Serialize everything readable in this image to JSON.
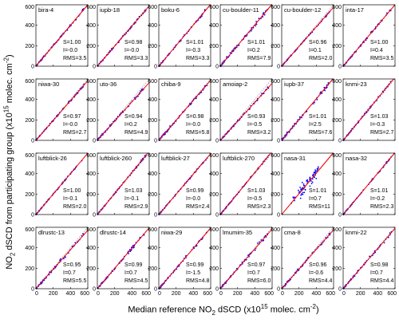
{
  "figure": {
    "ylabel_pre": "NO",
    "ylabel_sub": "2",
    "ylabel_mid": " dSCD from participating group (x10",
    "ylabel_sup1": "15",
    "ylabel_post": " molec. cm",
    "ylabel_sup2": "-2",
    "ylabel_end": ")",
    "xlabel_pre": "Median reference NO",
    "xlabel_sub": "2",
    "xlabel_mid": " dSCD (x10",
    "xlabel_sup1": "15",
    "xlabel_post": " molec. cm",
    "xlabel_sup2": "-2",
    "xlabel_end": ")",
    "colors": {
      "points": "#0000ff",
      "fit": "#ff0000",
      "one_to_one": "#999999"
    }
  },
  "chart_data": [
    {
      "type": "scatter",
      "title": "bira-4",
      "stats": {
        "S": "1.00",
        "I": "-0.0",
        "RMS": "3.5"
      },
      "xlim": [
        0,
        600
      ],
      "ylim": [
        0,
        600
      ],
      "yticks": [
        0,
        200,
        400,
        600
      ],
      "xticks": []
    },
    {
      "type": "scatter",
      "title": "iupb-18",
      "stats": {
        "S": "0.98",
        "I": "-0.0",
        "RMS": "3.3"
      },
      "xlim": [
        0,
        600
      ],
      "ylim": [
        0,
        600
      ],
      "yticks": [
        0,
        200,
        400,
        600
      ],
      "xticks": []
    },
    {
      "type": "scatter",
      "title": "boku-6",
      "stats": {
        "S": "1.01",
        "I": "-0.3",
        "RMS": "3.3"
      },
      "xlim": [
        0,
        600
      ],
      "ylim": [
        0,
        600
      ],
      "yticks": [
        0,
        200,
        400,
        600
      ],
      "xticks": []
    },
    {
      "type": "scatter",
      "title": "cu-boulder-11",
      "stats": {
        "S": "1.01",
        "I": "0.2",
        "RMS": "7.9"
      },
      "xlim": [
        0,
        600
      ],
      "ylim": [
        0,
        600
      ],
      "yticks": [
        0,
        200,
        400,
        600
      ],
      "xticks": []
    },
    {
      "type": "scatter",
      "title": "cu-boulder-12",
      "stats": {
        "S": "0.96",
        "I": "0.1",
        "RMS": "2.0"
      },
      "xlim": [
        0,
        600
      ],
      "ylim": [
        0,
        600
      ],
      "yticks": [
        0,
        200,
        400,
        600
      ],
      "xticks": []
    },
    {
      "type": "scatter",
      "title": "inta-17",
      "stats": {
        "S": "1.00",
        "I": "0.4",
        "RMS": "3.5"
      },
      "xlim": [
        0,
        600
      ],
      "ylim": [
        0,
        600
      ],
      "yticks": [
        0,
        200,
        400,
        600
      ],
      "xticks": []
    },
    {
      "type": "scatter",
      "title": "niwa-30",
      "stats": {
        "S": "0.97",
        "I": "-0.0",
        "RMS": "2.7"
      },
      "xlim": [
        0,
        600
      ],
      "ylim": [
        0,
        600
      ],
      "yticks": [
        0,
        200,
        400,
        600
      ],
      "xticks": []
    },
    {
      "type": "scatter",
      "title": "uto-36",
      "stats": {
        "S": "0.94",
        "I": "0.2",
        "RMS": "4.9"
      },
      "xlim": [
        0,
        600
      ],
      "ylim": [
        0,
        600
      ],
      "yticks": [
        0,
        200,
        400,
        600
      ],
      "xticks": []
    },
    {
      "type": "scatter",
      "title": "chiba-9",
      "stats": {
        "S": "0.98",
        "I": "-0.0",
        "RMS": "5.8"
      },
      "xlim": [
        0,
        600
      ],
      "ylim": [
        0,
        600
      ],
      "yticks": [
        0,
        200,
        400,
        600
      ],
      "xticks": []
    },
    {
      "type": "scatter",
      "title": "amoiap-2",
      "stats": {
        "S": "0.93",
        "I": "-0.5",
        "RMS": "3.2"
      },
      "xlim": [
        0,
        600
      ],
      "ylim": [
        0,
        600
      ],
      "yticks": [
        0,
        200,
        400,
        600
      ],
      "xticks": []
    },
    {
      "type": "scatter",
      "title": "iupb-37",
      "stats": {
        "S": "1.01",
        "I": "2.5",
        "RMS": "7.6"
      },
      "xlim": [
        0,
        600
      ],
      "ylim": [
        0,
        600
      ],
      "yticks": [
        0,
        200,
        400,
        600
      ],
      "xticks": []
    },
    {
      "type": "scatter",
      "title": "knmi-23",
      "stats": {
        "S": "1.03",
        "I": "-0.3",
        "RMS": "2.7"
      },
      "xlim": [
        0,
        600
      ],
      "ylim": [
        0,
        600
      ],
      "yticks": [
        0,
        200,
        400,
        600
      ],
      "xticks": []
    },
    {
      "type": "scatter",
      "title": "luftblick-26",
      "stats": {
        "S": "1.00",
        "I": "-0.1",
        "RMS": "2.0"
      },
      "xlim": [
        0,
        600
      ],
      "ylim": [
        0,
        600
      ],
      "yticks": [
        0,
        200,
        400,
        600
      ],
      "xticks": []
    },
    {
      "type": "scatter",
      "title": "luftblick-260",
      "stats": {
        "S": "1.03",
        "I": "-0.1",
        "RMS": "2.9"
      },
      "xlim": [
        0,
        600
      ],
      "ylim": [
        0,
        600
      ],
      "yticks": [
        0,
        200,
        400,
        600
      ],
      "xticks": []
    },
    {
      "type": "scatter",
      "title": "luftblick-27",
      "stats": {
        "S": "0.99",
        "I": "-0.0",
        "RMS": "2.4"
      },
      "xlim": [
        0,
        600
      ],
      "ylim": [
        0,
        600
      ],
      "yticks": [
        0,
        200,
        400,
        600
      ],
      "xticks": []
    },
    {
      "type": "scatter",
      "title": "luftblick-270",
      "stats": {
        "S": "1.03",
        "I": "-0.5",
        "RMS": "2.3"
      },
      "xlim": [
        0,
        600
      ],
      "ylim": [
        0,
        600
      ],
      "yticks": [
        0,
        200,
        400,
        600
      ],
      "xticks": []
    },
    {
      "type": "scatter",
      "title": "nasa-31",
      "stats": {
        "S": "1.01",
        "I": "0.7",
        "RMS": "11"
      },
      "xlim": [
        0,
        600
      ],
      "ylim": [
        0,
        600
      ],
      "yticks": [
        0,
        200,
        400,
        600
      ],
      "xticks": []
    },
    {
      "type": "scatter",
      "title": "nasa-32",
      "stats": {
        "S": "1.01",
        "I": "-0.2",
        "RMS": "2.3"
      },
      "xlim": [
        0,
        600
      ],
      "ylim": [
        0,
        600
      ],
      "yticks": [
        0,
        200,
        400,
        600
      ],
      "xticks": []
    },
    {
      "type": "scatter",
      "title": "dlrustc-13",
      "stats": {
        "S": "0.95",
        "I": "0.7",
        "RMS": "5.5"
      },
      "xlim": [
        0,
        600
      ],
      "ylim": [
        0,
        600
      ],
      "yticks": [
        0,
        200,
        400,
        600
      ],
      "xticks": [
        0,
        200,
        400,
        600
      ]
    },
    {
      "type": "scatter",
      "title": "dlrustc-14",
      "stats": {
        "S": "0.99",
        "I": "0.7",
        "RMS": "4.5"
      },
      "xlim": [
        0,
        600
      ],
      "ylim": [
        0,
        600
      ],
      "yticks": [
        0,
        200,
        400,
        600
      ],
      "xticks": [
        0,
        200,
        400,
        600
      ]
    },
    {
      "type": "scatter",
      "title": "niwa-29",
      "stats": {
        "S": "0.99",
        "I": "-1.5",
        "RMS": "4.8"
      },
      "xlim": [
        0,
        600
      ],
      "ylim": [
        0,
        600
      ],
      "yticks": [
        0,
        200,
        400,
        600
      ],
      "xticks": [
        0,
        200,
        400,
        600
      ]
    },
    {
      "type": "scatter",
      "title": "lmumim-35",
      "stats": {
        "S": "0.97",
        "I": "0.7",
        "RMS": "6.0"
      },
      "xlim": [
        0,
        600
      ],
      "ylim": [
        0,
        600
      ],
      "yticks": [
        0,
        200,
        400,
        600
      ],
      "xticks": [
        0,
        200,
        400,
        600
      ]
    },
    {
      "type": "scatter",
      "title": "cma-8",
      "stats": {
        "S": "0.96",
        "I": "-0.6",
        "RMS": "4.4"
      },
      "xlim": [
        0,
        600
      ],
      "ylim": [
        0,
        600
      ],
      "yticks": [
        0,
        200,
        400,
        600
      ],
      "xticks": [
        0,
        200,
        400,
        600
      ]
    },
    {
      "type": "scatter",
      "title": "knmi-22",
      "stats": {
        "S": "0.98",
        "I": "0.7",
        "RMS": "4.4"
      },
      "xlim": [
        0,
        600
      ],
      "ylim": [
        0,
        600
      ],
      "yticks": [
        0,
        200,
        400,
        600
      ],
      "xticks": [
        0,
        200,
        400,
        600
      ]
    }
  ]
}
